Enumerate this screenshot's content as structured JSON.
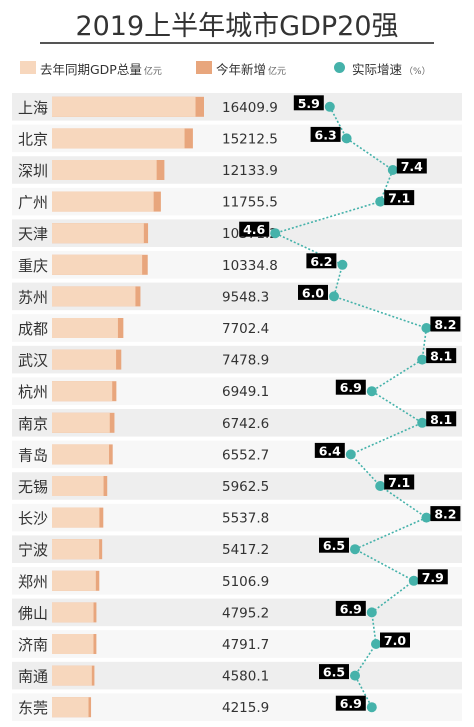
{
  "chart_data": {
    "type": "bar",
    "title": "2019上半年城市GDP20强",
    "legend": {
      "prior": {
        "label": "去年同期GDP总量",
        "unit": "亿元",
        "color": "#f7d7bd"
      },
      "added": {
        "label": "今年新增",
        "unit": "亿元",
        "color": "#e8a67d"
      },
      "growth": {
        "label": "实际增速",
        "unit": "（%）",
        "color": "#45b2aa"
      }
    },
    "categories": [
      "上海",
      "北京",
      "深圳",
      "广州",
      "天津",
      "重庆",
      "苏州",
      "成都",
      "武汉",
      "杭州",
      "南京",
      "青岛",
      "无锡",
      "长沙",
      "宁波",
      "郑州",
      "佛山",
      "济南",
      "南通",
      "东莞"
    ],
    "gdp_total": [
      16409.9,
      15212.5,
      12133.9,
      11755.5,
      10371.2,
      10334.8,
      9548.3,
      7702.4,
      7478.9,
      6949.1,
      6742.6,
      6552.7,
      5962.5,
      5537.8,
      5417.2,
      5106.9,
      4795.2,
      4791.7,
      4580.1,
      4215.9
    ],
    "gdp_total_labels": [
      "16409.9",
      "15212.5",
      "12133.9",
      "11755.5",
      "10371.2",
      "10334.8",
      "9548.3",
      "7702.4",
      "7478.9",
      "6949.1",
      "6742.6",
      "6552.7",
      "5962.5",
      "5537.8",
      "5417.2",
      "5106.9",
      "4795.2",
      "4791.7",
      "4580.1",
      "4215.9"
    ],
    "growth_rate": [
      5.9,
      6.3,
      7.4,
      7.1,
      4.6,
      6.2,
      6.0,
      8.2,
      8.1,
      6.9,
      8.1,
      6.4,
      7.1,
      8.2,
      6.5,
      7.9,
      6.9,
      7.0,
      6.5,
      6.9
    ],
    "growth_labels": [
      "5.9",
      "6.3",
      "7.4",
      "7.1",
      "4.6",
      "6.2",
      "6.0",
      "8.2",
      "8.1",
      "6.9",
      "8.1",
      "6.4",
      "7.1",
      "8.2",
      "6.5",
      "7.9",
      "6.9",
      "7.0",
      "6.5",
      "6.9"
    ],
    "growth_label_side": [
      "left",
      "left",
      "right",
      "right",
      "left",
      "left",
      "left",
      "right",
      "right",
      "left",
      "right",
      "left",
      "right",
      "right",
      "left",
      "right",
      "left",
      "right",
      "left",
      "left"
    ],
    "colors": {
      "row_band": "#eeeeee",
      "label_bg": "#000000",
      "label_text": "#ffffff",
      "text": "#333333"
    }
  }
}
